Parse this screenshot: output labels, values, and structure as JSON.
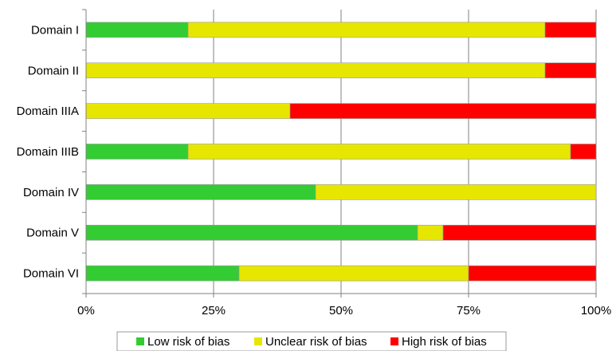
{
  "chart_data": {
    "type": "bar",
    "orientation": "horizontal",
    "stacked": true,
    "title": "",
    "xlabel": "",
    "ylabel": "",
    "categories": [
      "Domain I",
      "Domain II",
      "Domain IIIA",
      "Domain IIIB",
      "Domain IV",
      "Domain V",
      "Domain VI"
    ],
    "series": [
      {
        "name": "Low risk of bias",
        "color": "#33cc33",
        "values": [
          20,
          0,
          0,
          20,
          45,
          65,
          30
        ]
      },
      {
        "name": "Unclear risk of bias",
        "color": "#e6e600",
        "values": [
          70,
          90,
          40,
          75,
          55,
          5,
          45
        ]
      },
      {
        "name": "High risk of bias",
        "color": "#ff0000",
        "values": [
          10,
          10,
          60,
          5,
          0,
          30,
          25
        ]
      }
    ],
    "xlim": [
      0,
      100
    ],
    "xticks": [
      0,
      25,
      50,
      75,
      100
    ],
    "xtick_labels": [
      "0%",
      "25%",
      "50%",
      "75%",
      "100%"
    ],
    "grid": true,
    "legend_position": "bottom"
  }
}
